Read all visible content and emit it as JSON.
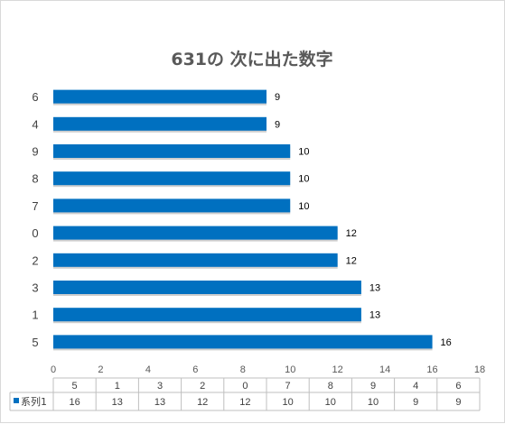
{
  "chart_data": {
    "type": "bar",
    "orientation": "horizontal",
    "title": "631の 次に出た数字",
    "categories": [
      "5",
      "1",
      "3",
      "2",
      "0",
      "7",
      "8",
      "9",
      "4",
      "6"
    ],
    "series": [
      {
        "name": "系列1",
        "values": [
          16,
          13,
          13,
          12,
          12,
          10,
          10,
          10,
          9,
          9
        ],
        "color": "#0070c0"
      }
    ],
    "xlim": [
      0,
      18
    ],
    "x_ticks": [
      "0",
      "2",
      "4",
      "6",
      "8",
      "10",
      "12",
      "14",
      "16",
      "18"
    ],
    "data_labels": true,
    "grid": false,
    "legend": "data-table-left",
    "data_table": true
  }
}
